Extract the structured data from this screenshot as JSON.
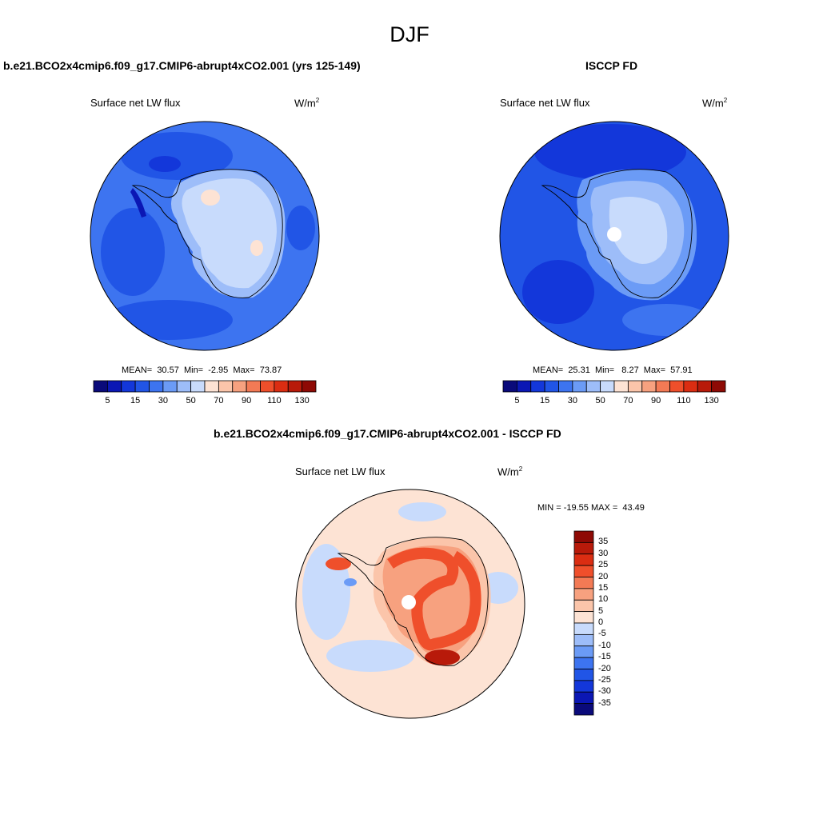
{
  "season": "DJF",
  "variable": "Surface net LW flux",
  "units_base": "W/m",
  "units_exp": "2",
  "panels": [
    {
      "title": "b.e21.BCO2x4cmip6.f09_g17.CMIP6-abrupt4xCO2.001 (yrs 125-149)",
      "stats": "MEAN=  30.57  Min=  -2.95  Max=  73.87"
    },
    {
      "title": "ISCCP FD",
      "stats": "MEAN=  25.31  Min=   8.27  Max=  57.91"
    }
  ],
  "abs_colorbar": {
    "colors": [
      "#0a0a7a",
      "#0b17b4",
      "#1337da",
      "#2155e6",
      "#3d74f0",
      "#6b9bf6",
      "#9dbdf9",
      "#c8dbfc",
      "#fde3d4",
      "#fbc5aa",
      "#f7a17f",
      "#f37a55",
      "#ef4f2b",
      "#db2d12",
      "#b81a0a",
      "#8e0a05"
    ],
    "labels": [
      "5",
      "15",
      "30",
      "50",
      "70",
      "90",
      "110",
      "130"
    ]
  },
  "diff": {
    "title": "b.e21.BCO2x4cmip6.f09_g17.CMIP6-abrupt4xCO2.001 - ISCCP FD",
    "minmax": "MIN = -19.55 MAX =  43.49",
    "colors": [
      "#8e0a05",
      "#b81a0a",
      "#db2d12",
      "#ef4f2b",
      "#f37a55",
      "#f7a17f",
      "#fbc5aa",
      "#fde3d4",
      "#c8dbfc",
      "#9dbdf9",
      "#6b9bf6",
      "#3d74f0",
      "#2155e6",
      "#1337da",
      "#0b17b4",
      "#0a0a7a"
    ],
    "labels": [
      "35",
      "30",
      "25",
      "20",
      "15",
      "10",
      "5",
      "0",
      "-5",
      "-10",
      "-15",
      "-20",
      "-25",
      "-30",
      "-35"
    ]
  }
}
